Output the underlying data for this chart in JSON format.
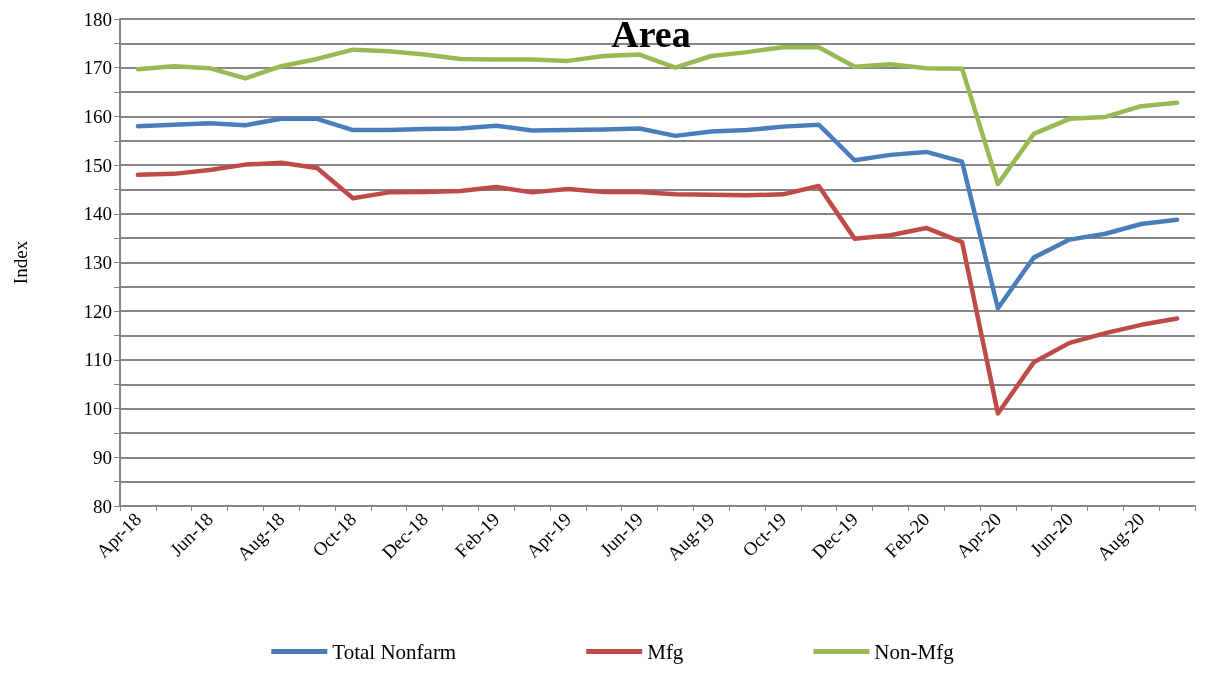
{
  "chart_data": {
    "type": "line",
    "title": "Area",
    "ylabel": "Index",
    "categories": [
      "Apr-18",
      null,
      "Jun-18",
      null,
      "Aug-18",
      null,
      "Oct-18",
      null,
      "Dec-18",
      null,
      "Feb-19",
      null,
      "Apr-19",
      null,
      "Jun-19",
      null,
      "Aug-19",
      null,
      "Oct-19",
      null,
      "Dec-19",
      null,
      "Feb-20",
      null,
      "Apr-20",
      null,
      "Jun-20",
      null,
      "Aug-20",
      null
    ],
    "series": [
      {
        "name": "Total Nonfarm",
        "color": "#4a7ebb",
        "values": [
          158,
          158.3,
          158.6,
          158.2,
          159.5,
          159.5,
          157.2,
          157.2,
          157.4,
          157.5,
          158.1,
          157.1,
          157.2,
          157.3,
          157.5,
          156,
          156.9,
          157.2,
          157.9,
          158.3,
          151,
          152.1,
          152.7,
          150.7,
          120.6,
          131,
          134.7,
          135.9,
          137.9,
          138.8
        ]
      },
      {
        "name": "Mfg",
        "color": "#be4b48",
        "values": [
          148,
          148.2,
          149,
          150.1,
          150.5,
          149.4,
          143.2,
          144.4,
          144.5,
          144.7,
          145.5,
          144.4,
          145.1,
          144.5,
          144.5,
          144,
          143.9,
          143.8,
          144,
          145.7,
          134.9,
          135.6,
          137.1,
          134.2,
          99,
          109.5,
          113.5,
          115.5,
          117.2,
          118.5
        ]
      },
      {
        "name": "Non-Mfg",
        "color": "#98b954",
        "values": [
          169.7,
          170.3,
          169.9,
          167.8,
          170.3,
          171.8,
          173.7,
          173.4,
          172.7,
          171.8,
          171.7,
          171.7,
          171.4,
          172.4,
          172.7,
          170,
          172.4,
          173.2,
          174.2,
          174.2,
          170.2,
          170.7,
          169.9,
          169.8,
          146.1,
          156.4,
          159.5,
          159.9,
          162.1,
          162.8
        ]
      }
    ],
    "ylim": [
      80,
      180
    ],
    "yticks": [
      80,
      {
        "value": 85,
        "label": null
      },
      90,
      {
        "value": 95,
        "label": null
      },
      100,
      {
        "value": 105,
        "label": null
      },
      110,
      {
        "value": 115,
        "label": null
      },
      120,
      {
        "value": 125,
        "label": null
      },
      130,
      {
        "value": 135,
        "label": null
      },
      140,
      {
        "value": 145,
        "label": null
      },
      150,
      {
        "value": 155,
        "label": null
      },
      160,
      {
        "value": 165,
        "label": null
      },
      170,
      {
        "value": 175,
        "label": null
      },
      180
    ],
    "grid": "y",
    "legend": "bottom",
    "marker": "none",
    "line_style": "solid"
  }
}
